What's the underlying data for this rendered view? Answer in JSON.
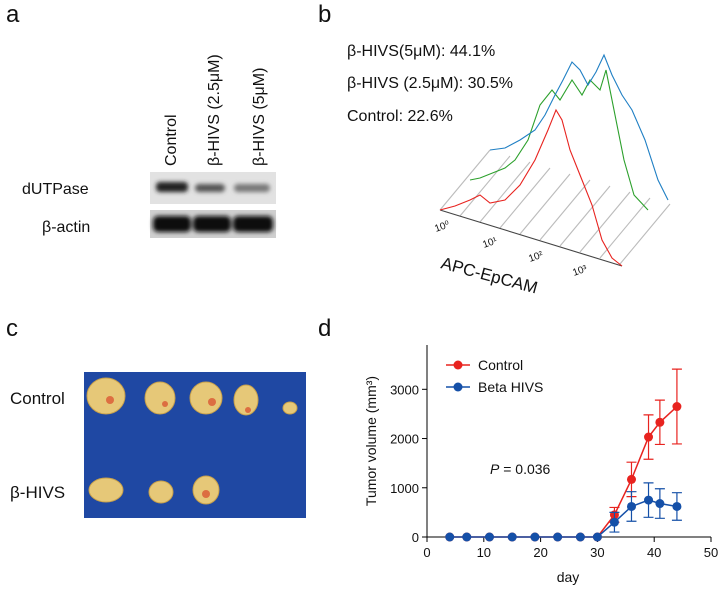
{
  "panels": {
    "a": {
      "label": "a",
      "lanes": [
        "Control",
        "β-HIVS (2.5μM)",
        "β-HIVS (5μM)"
      ],
      "rows": [
        "dUTPase",
        "β-actin"
      ]
    },
    "b": {
      "label": "b",
      "legend": [
        {
          "text": "β-HIVS(5μM): 44.1%",
          "color": "#1f7fc4"
        },
        {
          "text": "β-HIVS (2.5μM): 30.5%",
          "color": "#2ca02c"
        },
        {
          "text": "Control: 22.6%",
          "color": "#e8231f"
        }
      ],
      "axis_ticks": [
        "10⁰",
        "10¹",
        "10²",
        "10³"
      ],
      "axis_label": "APC-EpCAM"
    },
    "c": {
      "label": "c",
      "rows": [
        "Control",
        "β-HIVS"
      ]
    },
    "d": {
      "label": "d"
    }
  },
  "chart_data": {
    "type": "line",
    "x_label": "day",
    "y_label": "Tumor volume (mm³)",
    "annotation": [
      "P",
      " = 0.036"
    ],
    "x": [
      4,
      7,
      11,
      15,
      19,
      23,
      27,
      30,
      33,
      36,
      39,
      41,
      44
    ],
    "series": [
      {
        "name": "Control",
        "color": "#e8231f",
        "values": [
          0,
          0,
          0,
          0,
          0,
          0,
          0,
          0,
          450,
          1170,
          2030,
          2330,
          2650
        ],
        "errors": [
          null,
          null,
          null,
          null,
          null,
          null,
          null,
          null,
          150,
          350,
          450,
          450,
          760
        ]
      },
      {
        "name": "Beta HIVS",
        "color": "#1550a8",
        "values": [
          0,
          0,
          0,
          0,
          0,
          0,
          0,
          0,
          300,
          620,
          750,
          680,
          620
        ],
        "errors": [
          null,
          null,
          null,
          null,
          null,
          null,
          null,
          null,
          200,
          300,
          350,
          300,
          280
        ]
      }
    ],
    "xlim": [
      0,
      50
    ],
    "xticks": [
      0,
      10,
      20,
      30,
      40,
      50
    ],
    "ylim": [
      0,
      3900
    ],
    "yticks": [
      0,
      1000,
      2000,
      3000
    ]
  }
}
